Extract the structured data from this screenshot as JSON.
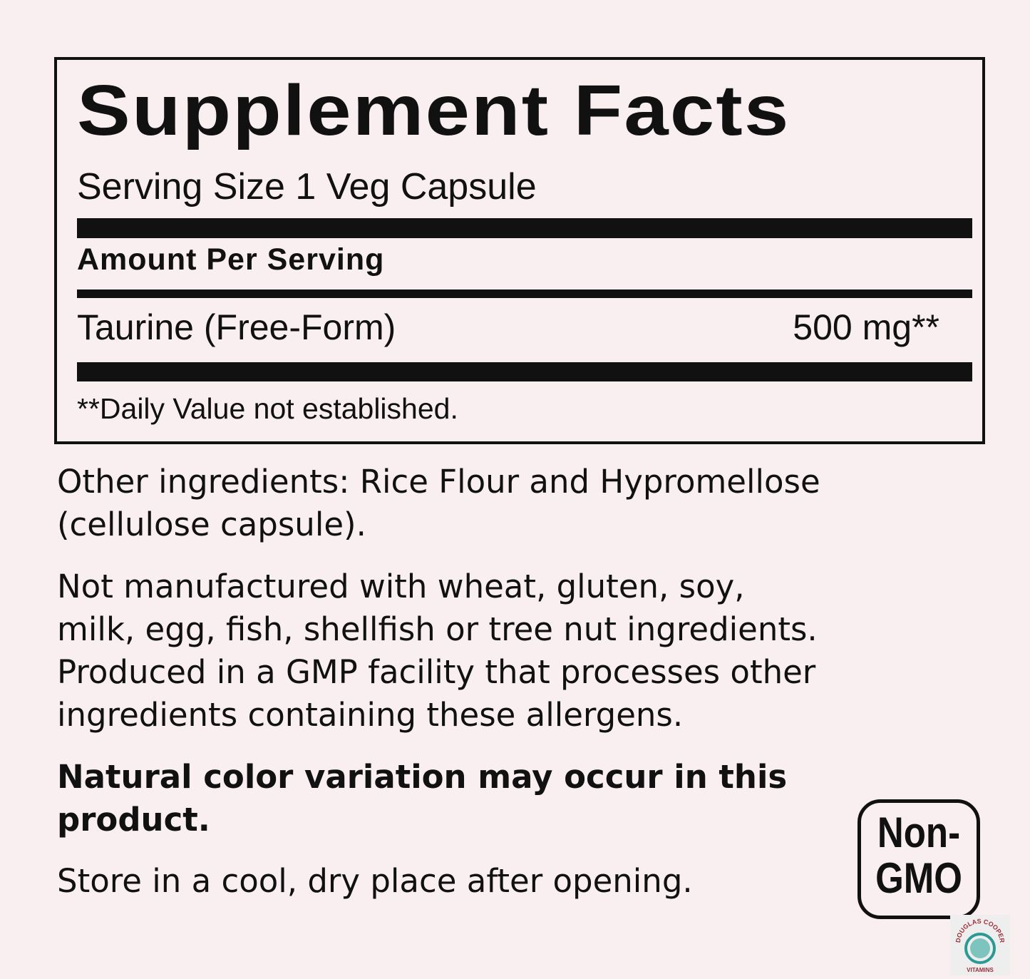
{
  "facts": {
    "title": "Supplement Facts",
    "serving_size": "Serving Size 1 Veg Capsule",
    "amount_header": "Amount Per Serving",
    "rows": [
      {
        "name": "Taurine (Free-Form)",
        "amount": "500 mg**"
      }
    ],
    "footnote": "**Daily Value not established."
  },
  "other_ingredients": [
    "Other ingredients: Rice Flour and Hypromellose",
    "(cellulose capsule)."
  ],
  "allergen": [
    "Not manufactured with wheat, gluten, soy,",
    "milk, egg, fish, shellfish or tree nut ingredients.",
    "Produced in a GMP facility that processes other",
    "ingredients containing these allergens."
  ],
  "color_note": [
    "Natural color variation may occur in this",
    "product."
  ],
  "storage": "Store in a cool, dry place after opening.",
  "badge": [
    "Non-",
    "GMO"
  ],
  "logo": {
    "top": "DOUGLAS COOPER",
    "bottom": "VITAMINS",
    "colors": {
      "text": "#9b2f3a",
      "emblem": "#2a9a92"
    }
  }
}
